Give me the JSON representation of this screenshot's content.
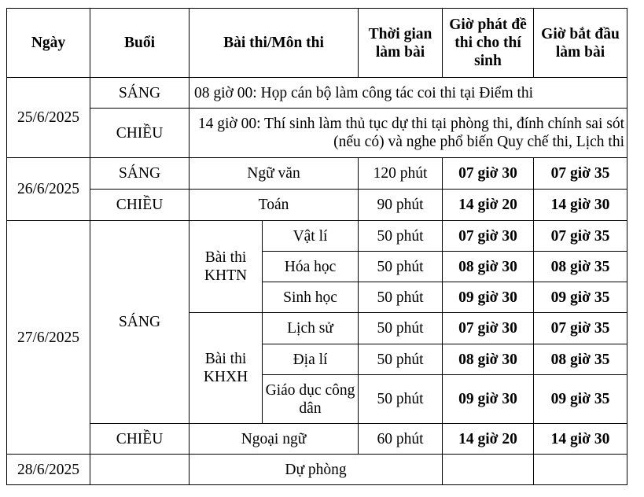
{
  "header": {
    "date": "Ngày",
    "session": "Buổi",
    "subject": "Bài thi/Môn thi",
    "duration": "Thời gian làm bài",
    "paper_time": "Giờ phát đề thi cho thí sinh",
    "start_time": "Giờ bắt đầu làm bài"
  },
  "d1": {
    "date": "25/6/2025",
    "s1": "SÁNG",
    "n1": "08 giờ 00: Họp cán bộ làm công tác coi thi tại Điểm thi",
    "s2": "CHIỀU",
    "n2": "14 giờ 00: Thí sinh làm thủ tục dự thi tại phòng thi, đính chính sai sót (nếu có) và nghe phổ biến Quy chế thi, Lịch thi"
  },
  "d2": {
    "date": "26/6/2025",
    "rows": [
      {
        "session": "SÁNG",
        "subject": "Ngữ văn",
        "duration": "120 phút",
        "paper": "07 giờ 30",
        "start": "07 giờ 35"
      },
      {
        "session": "CHIỀU",
        "subject": "Toán",
        "duration": "90 phút",
        "paper": "14 giờ 20",
        "start": "14 giờ 30"
      }
    ]
  },
  "d3": {
    "date": "27/6/2025",
    "morning": "SÁNG",
    "khtn": "Bài thi KHTN",
    "khxh": "Bài thi KHXH",
    "rows": [
      {
        "subject": "Vật lí",
        "duration": "50 phút",
        "paper": "07 giờ 30",
        "start": "07 giờ 35"
      },
      {
        "subject": "Hóa học",
        "duration": "50 phút",
        "paper": "08 giờ 30",
        "start": "08 giờ 35"
      },
      {
        "subject": "Sinh học",
        "duration": "50 phút",
        "paper": "09 giờ 30",
        "start": "09 giờ 35"
      },
      {
        "subject": "Lịch sử",
        "duration": "50 phút",
        "paper": "07 giờ 30",
        "start": "07 giờ 35"
      },
      {
        "subject": "Địa lí",
        "duration": "50 phút",
        "paper": "08 giờ 30",
        "start": "08 giờ 35"
      },
      {
        "subject": "Giáo dục công dân",
        "duration": "50 phút",
        "paper": "09 giờ 30",
        "start": "09 giờ 35"
      }
    ],
    "afternoon": {
      "session": "CHIỀU",
      "subject": "Ngoại ngữ",
      "duration": "60 phút",
      "paper": "14 giờ 20",
      "start": "14 giờ 30"
    }
  },
  "d4": {
    "date": "28/6/2025",
    "note": "Dự phòng"
  }
}
